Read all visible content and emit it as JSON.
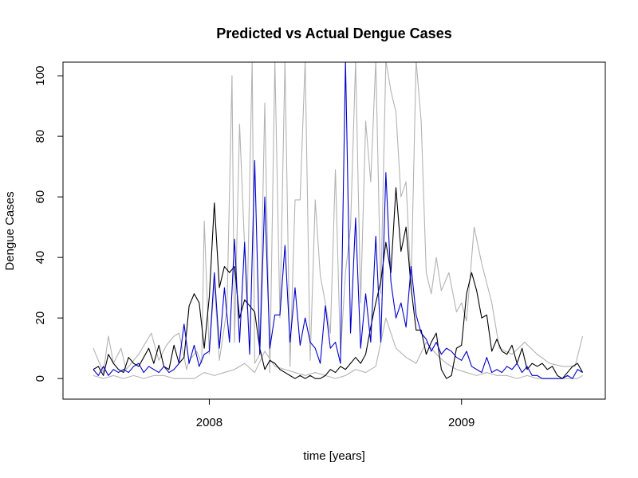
{
  "chart_data": {
    "type": "line",
    "title": "Predicted vs Actual Dengue Cases",
    "xlabel": "time [years]",
    "ylabel": "Dengue Cases",
    "xlim": [
      2007.42,
      2009.57
    ],
    "ylim": [
      -6.8,
      104.5
    ],
    "x_ticks": [
      2008,
      2009
    ],
    "x_tick_labels": [
      "2008",
      "2009"
    ],
    "y_ticks": [
      0,
      20,
      40,
      60,
      80,
      100
    ],
    "y_tick_labels": [
      "0",
      "20",
      "40",
      "60",
      "80",
      "100"
    ],
    "grid": false,
    "legend": "none",
    "series": [
      {
        "color": "#b3b3b3",
        "x": [
          2007.54,
          2007.58,
          2007.6,
          2007.62,
          2007.65,
          2007.67,
          2007.72,
          2007.77,
          2007.8,
          2007.83,
          2007.86,
          2007.88,
          2007.91,
          2007.92,
          2007.95,
          2007.97,
          2007.98,
          2008.0,
          2008.02,
          2008.04,
          2008.07,
          2008.09,
          2008.1,
          2008.12,
          2008.15,
          2008.17,
          2008.18,
          2008.2,
          2008.22,
          2008.24,
          2008.26,
          2008.28,
          2008.3,
          2008.32,
          2008.34,
          2008.36,
          2008.38,
          2008.4,
          2008.42,
          2008.44,
          2008.46,
          2008.48,
          2008.5,
          2008.52,
          2008.54,
          2008.56,
          2008.58,
          2008.6,
          2008.62,
          2008.64,
          2008.66,
          2008.68,
          2008.7,
          2008.72,
          2008.74,
          2008.76,
          2008.78,
          2008.8,
          2008.82,
          2008.84,
          2008.86,
          2008.88,
          2008.9,
          2008.92,
          2008.95,
          2008.98,
          2009.0,
          2009.02,
          2009.05,
          2009.08,
          2009.12,
          2009.15,
          2009.2,
          2009.25,
          2009.3,
          2009.35,
          2009.4,
          2009.45,
          2009.48
        ],
        "values": [
          10,
          2,
          14,
          5,
          10,
          3,
          8,
          15,
          6,
          11,
          14,
          15,
          3,
          6,
          9,
          5,
          52,
          8,
          32,
          6,
          23,
          100,
          12,
          84,
          23,
          105,
          5,
          8,
          91,
          2,
          105,
          20,
          105,
          4,
          59,
          59,
          105,
          6,
          59,
          34,
          25,
          15,
          69,
          8,
          35,
          50,
          105,
          25,
          85,
          65,
          105,
          28,
          105,
          95,
          88,
          60,
          65,
          30,
          105,
          85,
          35,
          28,
          40,
          29,
          35,
          22,
          25,
          19,
          50,
          38,
          25,
          10,
          8,
          12,
          8,
          5,
          4,
          4,
          14
        ]
      },
      {
        "color": "#b3b3b3",
        "x": [
          2007.54,
          2007.58,
          2007.62,
          2007.66,
          2007.7,
          2007.74,
          2007.78,
          2007.82,
          2007.86,
          2007.9,
          2007.94,
          2007.98,
          2008.02,
          2008.06,
          2008.1,
          2008.14,
          2008.18,
          2008.22,
          2008.26,
          2008.3,
          2008.34,
          2008.38,
          2008.42,
          2008.46,
          2008.5,
          2008.54,
          2008.58,
          2008.62,
          2008.66,
          2008.7,
          2008.74,
          2008.78,
          2008.82,
          2008.86,
          2008.9,
          2008.94,
          2008.98,
          2009.02,
          2009.06,
          2009.1,
          2009.14,
          2009.18,
          2009.22,
          2009.26,
          2009.3,
          2009.34,
          2009.38,
          2009.42,
          2009.46,
          2009.48
        ],
        "values": [
          1,
          0,
          1,
          0,
          1,
          0,
          1,
          1,
          0,
          0,
          0,
          2,
          1,
          2,
          3,
          5,
          2,
          9,
          4,
          3,
          2,
          1,
          2,
          1,
          0,
          1,
          3,
          2,
          4,
          20,
          10,
          7,
          5,
          12,
          8,
          5,
          3,
          2,
          1,
          2,
          1,
          1,
          0,
          1,
          0,
          0,
          0,
          0,
          0,
          1
        ]
      },
      {
        "color": "#000000",
        "x": [
          2007.54,
          2007.56,
          2007.58,
          2007.6,
          2007.62,
          2007.64,
          2007.66,
          2007.68,
          2007.7,
          2007.72,
          2007.74,
          2007.76,
          2007.78,
          2007.8,
          2007.82,
          2007.84,
          2007.86,
          2007.88,
          2007.9,
          2007.92,
          2007.94,
          2007.96,
          2007.98,
          2008.0,
          2008.02,
          2008.04,
          2008.06,
          2008.08,
          2008.1,
          2008.12,
          2008.14,
          2008.16,
          2008.18,
          2008.2,
          2008.22,
          2008.24,
          2008.26,
          2008.28,
          2008.3,
          2008.32,
          2008.34,
          2008.36,
          2008.38,
          2008.4,
          2008.42,
          2008.44,
          2008.46,
          2008.48,
          2008.5,
          2008.52,
          2008.54,
          2008.56,
          2008.58,
          2008.6,
          2008.62,
          2008.64,
          2008.66,
          2008.68,
          2008.7,
          2008.72,
          2008.74,
          2008.76,
          2008.78,
          2008.8,
          2008.82,
          2008.84,
          2008.86,
          2008.88,
          2008.9,
          2008.92,
          2008.94,
          2008.96,
          2008.98,
          2009.0,
          2009.02,
          2009.04,
          2009.06,
          2009.08,
          2009.1,
          2009.12,
          2009.14,
          2009.16,
          2009.18,
          2009.2,
          2009.22,
          2009.24,
          2009.26,
          2009.28,
          2009.3,
          2009.32,
          2009.34,
          2009.36,
          2009.38,
          2009.4,
          2009.42,
          2009.44,
          2009.46,
          2009.48
        ],
        "values": [
          3,
          4,
          1,
          8,
          5,
          3,
          2,
          7,
          5,
          4,
          7,
          10,
          5,
          11,
          4,
          3,
          11,
          5,
          7,
          24,
          28,
          25,
          10,
          27,
          58,
          30,
          37,
          35,
          37,
          20,
          26,
          24,
          22,
          10,
          3,
          6,
          5,
          3,
          2,
          1,
          0,
          1,
          0,
          1,
          0,
          0,
          1,
          3,
          2,
          4,
          3,
          5,
          7,
          5,
          8,
          17,
          25,
          32,
          45,
          35,
          63,
          42,
          50,
          30,
          16,
          16,
          8,
          12,
          15,
          3,
          0,
          1,
          10,
          11,
          28,
          35,
          29,
          20,
          21,
          9,
          13,
          9,
          8,
          11,
          5,
          10,
          3,
          5,
          4,
          5,
          3,
          4,
          1,
          0,
          2,
          4,
          5,
          2
        ]
      },
      {
        "color": "#0000cc",
        "x": [
          2007.54,
          2007.56,
          2007.58,
          2007.6,
          2007.62,
          2007.64,
          2007.66,
          2007.68,
          2007.7,
          2007.72,
          2007.74,
          2007.76,
          2007.78,
          2007.8,
          2007.82,
          2007.84,
          2007.86,
          2007.88,
          2007.9,
          2007.92,
          2007.94,
          2007.96,
          2007.98,
          2008.0,
          2008.02,
          2008.04,
          2008.06,
          2008.08,
          2008.1,
          2008.12,
          2008.14,
          2008.16,
          2008.18,
          2008.2,
          2008.22,
          2008.24,
          2008.26,
          2008.28,
          2008.3,
          2008.32,
          2008.34,
          2008.36,
          2008.38,
          2008.4,
          2008.42,
          2008.44,
          2008.46,
          2008.48,
          2008.5,
          2008.52,
          2008.54,
          2008.56,
          2008.58,
          2008.6,
          2008.62,
          2008.64,
          2008.66,
          2008.68,
          2008.7,
          2008.72,
          2008.74,
          2008.76,
          2008.78,
          2008.8,
          2008.82,
          2008.84,
          2008.86,
          2008.88,
          2008.9,
          2008.92,
          2008.94,
          2008.96,
          2008.98,
          2009.0,
          2009.02,
          2009.04,
          2009.06,
          2009.08,
          2009.1,
          2009.12,
          2009.14,
          2009.16,
          2009.18,
          2009.2,
          2009.22,
          2009.24,
          2009.26,
          2009.28,
          2009.3,
          2009.32,
          2009.34,
          2009.36,
          2009.38,
          2009.4,
          2009.42,
          2009.44,
          2009.46,
          2009.48
        ],
        "values": [
          3,
          1,
          4,
          1,
          3,
          2,
          3,
          2,
          4,
          5,
          2,
          4,
          3,
          2,
          4,
          2,
          3,
          5,
          18,
          5,
          11,
          4,
          8,
          9,
          35,
          10,
          30,
          12,
          46,
          12,
          45,
          8,
          72,
          8,
          60,
          10,
          21,
          21,
          44,
          12,
          30,
          11,
          20,
          12,
          10,
          5,
          24,
          10,
          12,
          5,
          105,
          15,
          53,
          10,
          28,
          12,
          47,
          12,
          68,
          32,
          20,
          25,
          17,
          37,
          21,
          15,
          13,
          9,
          12,
          8,
          10,
          9,
          7,
          6,
          9,
          4,
          3,
          2,
          7,
          2,
          3,
          2,
          4,
          3,
          5,
          2,
          4,
          1,
          1,
          0,
          0,
          0,
          0,
          0,
          1,
          0,
          3,
          2
        ]
      }
    ]
  }
}
